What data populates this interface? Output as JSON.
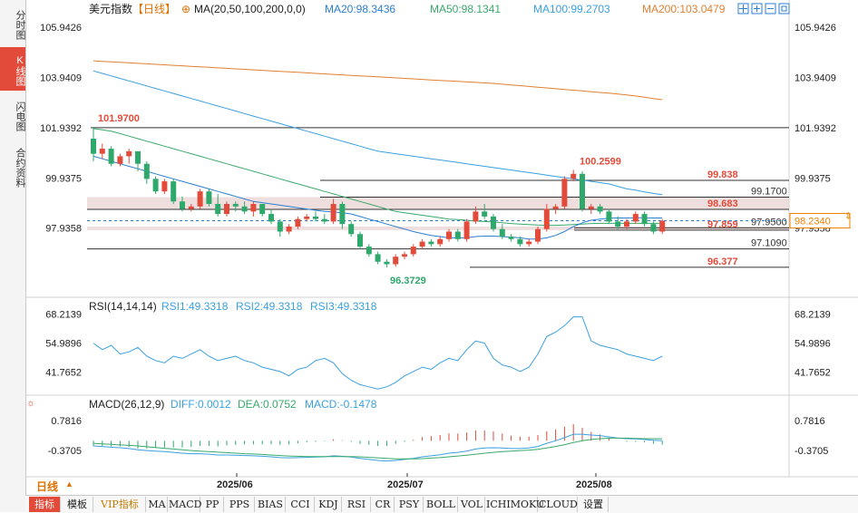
{
  "side_tabs": [
    "分时图",
    "K线图",
    "闪电图",
    "合约资料"
  ],
  "header": {
    "symbol": "美元指数",
    "period_tag": "【日线】",
    "ma_label": "MA(20,50,100,200,0,0)",
    "ma20": "MA20:98.3436",
    "ma50": "MA50:98.1341",
    "ma100": "MA100:99.2703",
    "ma200": "MA200:103.0479"
  },
  "rsi_header": {
    "label": "RSI(14,14,14)",
    "rsi1": "RSI1:49.3318",
    "rsi2": "RSI2:49.3318",
    "rsi3": "RSI3:49.3318"
  },
  "macd_header": {
    "label": "MACD(26,12,9)",
    "diff": "DIFF:0.0012",
    "dea": "DEA:0.0752",
    "macd": "MACD:-0.1478"
  },
  "period_selector": "日线",
  "indicator_tabs": [
    "指标",
    "模板",
    "VIP指标",
    "MA",
    "MACD",
    "PP",
    "PPS",
    "BIAS",
    "CCI",
    "KDJ",
    "RSI",
    "CR",
    "PSY",
    "BOLL",
    "VOL",
    "ICHIMOKU",
    "CLOUD",
    "设置"
  ],
  "colors": {
    "up": "#e24a3a",
    "down": "#2ea86b",
    "ma20": "#2b7fd0",
    "ma50": "#39a96b",
    "ma100": "#3aa0e0",
    "ma200": "#e08030",
    "current_price": "#f08000",
    "zone": "#e8d0d0"
  },
  "chart_data": [
    {
      "type": "candlestick",
      "title": "美元指数",
      "x_ticks": [
        "2025/06",
        "2025/07",
        "2025/08"
      ],
      "y_ticks": [
        "105.9426",
        "103.9409",
        "101.9392",
        "99.9375",
        "97.9358"
      ],
      "ylim": [
        95.4,
        106.3
      ],
      "current_price": "98.2340",
      "annotations": {
        "high_label": "101.9700",
        "peak_label": "100.2599",
        "low_label": "96.3729"
      },
      "levels": [
        {
          "value": 101.9392,
          "label": "101.9392",
          "color": "#333333"
        },
        {
          "value": 99.838,
          "label": "99.838",
          "color": "#e24a3a"
        },
        {
          "value": 99.17,
          "label": "99.1700",
          "color": "#333333"
        },
        {
          "value": 98.683,
          "label": "98.683",
          "color": "#e24a3a"
        },
        {
          "value": 97.95,
          "label": "97.9500",
          "color": "#333333"
        },
        {
          "value": 97.859,
          "label": "97.859",
          "color": "#e24a3a"
        },
        {
          "value": 97.109,
          "label": "97.1090",
          "color": "#333333"
        },
        {
          "value": 96.377,
          "label": "96.377",
          "color": "#e24a3a"
        }
      ],
      "zones": [
        [
          98.683,
          99.17
        ],
        [
          97.859,
          98.0
        ]
      ],
      "candles": [
        [
          101.5,
          101.97,
          100.6,
          100.9
        ],
        [
          100.9,
          101.3,
          100.7,
          101.1
        ],
        [
          101.1,
          101.2,
          100.4,
          100.5
        ],
        [
          100.5,
          100.9,
          100.4,
          100.8
        ],
        [
          100.8,
          101.1,
          100.5,
          101.0
        ],
        [
          101.0,
          101.0,
          100.2,
          100.5
        ],
        [
          100.5,
          100.6,
          99.7,
          99.9
        ],
        [
          99.9,
          100.0,
          99.3,
          99.4
        ],
        [
          99.4,
          99.9,
          99.3,
          99.8
        ],
        [
          99.8,
          99.9,
          98.9,
          99.0
        ],
        [
          99.0,
          99.2,
          98.6,
          98.7
        ],
        [
          98.7,
          98.9,
          98.6,
          98.8
        ],
        [
          98.8,
          99.5,
          98.7,
          99.4
        ],
        [
          99.4,
          99.5,
          98.8,
          98.9
        ],
        [
          98.9,
          99.3,
          98.4,
          98.5
        ],
        [
          98.5,
          99.0,
          98.4,
          98.9
        ],
        [
          98.9,
          99.0,
          98.6,
          98.8
        ],
        [
          98.8,
          99.0,
          98.5,
          98.6
        ],
        [
          98.6,
          99.0,
          98.4,
          98.9
        ],
        [
          98.9,
          98.9,
          98.4,
          98.5
        ],
        [
          98.5,
          98.7,
          98.1,
          98.2
        ],
        [
          98.2,
          98.3,
          97.6,
          97.8
        ],
        [
          97.8,
          98.1,
          97.7,
          98.0
        ],
        [
          98.0,
          98.4,
          97.9,
          98.3
        ],
        [
          98.3,
          98.5,
          98.2,
          98.4
        ],
        [
          98.4,
          98.6,
          98.2,
          98.3
        ],
        [
          98.3,
          98.5,
          98.1,
          98.2
        ],
        [
          98.2,
          99.1,
          98.1,
          98.9
        ],
        [
          98.9,
          99.0,
          97.9,
          98.1
        ],
        [
          98.1,
          98.2,
          97.6,
          97.7
        ],
        [
          97.7,
          97.8,
          97.1,
          97.2
        ],
        [
          97.2,
          97.3,
          96.8,
          96.9
        ],
        [
          96.9,
          97.0,
          96.5,
          96.6
        ],
        [
          96.6,
          96.7,
          96.37,
          96.5
        ],
        [
          96.5,
          96.9,
          96.4,
          96.8
        ],
        [
          96.8,
          97.0,
          96.7,
          96.9
        ],
        [
          96.9,
          97.3,
          96.8,
          97.2
        ],
        [
          97.2,
          97.5,
          97.1,
          97.4
        ],
        [
          97.4,
          97.5,
          97.2,
          97.3
        ],
        [
          97.3,
          97.6,
          97.2,
          97.5
        ],
        [
          97.5,
          97.9,
          97.4,
          97.8
        ],
        [
          97.8,
          97.9,
          97.4,
          97.5
        ],
        [
          97.5,
          98.3,
          97.4,
          98.2
        ],
        [
          98.2,
          98.8,
          98.1,
          98.6
        ],
        [
          98.6,
          98.9,
          98.3,
          98.4
        ],
        [
          98.4,
          98.5,
          97.8,
          97.9
        ],
        [
          97.9,
          98.1,
          97.5,
          97.6
        ],
        [
          97.6,
          97.7,
          97.4,
          97.5
        ],
        [
          97.5,
          97.6,
          97.2,
          97.3
        ],
        [
          97.3,
          97.5,
          97.2,
          97.4
        ],
        [
          97.4,
          98.0,
          97.3,
          97.9
        ],
        [
          97.9,
          98.9,
          97.8,
          98.7
        ],
        [
          98.7,
          98.9,
          98.5,
          98.8
        ],
        [
          98.8,
          100.0,
          98.7,
          99.9
        ],
        [
          99.9,
          100.2599,
          99.8,
          100.1
        ],
        [
          100.1,
          100.2,
          98.6,
          98.7
        ],
        [
          98.7,
          98.9,
          98.5,
          98.8
        ],
        [
          98.8,
          98.9,
          98.5,
          98.6
        ],
        [
          98.6,
          98.7,
          98.1,
          98.2
        ],
        [
          98.2,
          98.4,
          97.9,
          98.0
        ],
        [
          98.0,
          98.3,
          97.9,
          98.2
        ],
        [
          98.2,
          98.6,
          98.1,
          98.5
        ],
        [
          98.5,
          98.6,
          98.0,
          98.1
        ],
        [
          98.1,
          98.2,
          97.7,
          97.8
        ],
        [
          97.8,
          98.3,
          97.7,
          98.23
        ]
      ],
      "ma20": [
        100.8,
        100.7,
        100.6,
        100.5,
        100.4,
        100.3,
        100.2,
        100.1,
        100.0,
        99.9,
        99.8,
        99.7,
        99.6,
        99.5,
        99.4,
        99.3,
        99.2,
        99.1,
        99.0,
        98.95,
        98.9,
        98.85,
        98.8,
        98.75,
        98.7,
        98.65,
        98.6,
        98.58,
        98.55,
        98.5,
        98.4,
        98.3,
        98.2,
        98.1,
        98.0,
        97.9,
        97.8,
        97.72,
        97.65,
        97.6,
        97.55,
        97.55,
        97.55,
        97.6,
        97.62,
        97.62,
        97.6,
        97.58,
        97.55,
        97.5,
        97.5,
        97.55,
        97.65,
        97.8,
        98.0,
        98.15,
        98.25,
        98.3,
        98.33,
        98.34,
        98.34,
        98.35,
        98.35,
        98.34,
        98.34
      ],
      "ma50": [
        101.9,
        101.85,
        101.8,
        101.7,
        101.6,
        101.5,
        101.4,
        101.3,
        101.2,
        101.1,
        101.0,
        100.9,
        100.8,
        100.7,
        100.6,
        100.5,
        100.4,
        100.3,
        100.2,
        100.1,
        100.0,
        99.9,
        99.8,
        99.7,
        99.6,
        99.5,
        99.4,
        99.3,
        99.2,
        99.1,
        99.0,
        98.9,
        98.8,
        98.7,
        98.6,
        98.55,
        98.5,
        98.45,
        98.4,
        98.35,
        98.3,
        98.28,
        98.25,
        98.22,
        98.2,
        98.18,
        98.15,
        98.12,
        98.1,
        98.08,
        98.06,
        98.05,
        98.05,
        98.06,
        98.08,
        98.1,
        98.12,
        98.13,
        98.13,
        98.13,
        98.13,
        98.13,
        98.13,
        98.13,
        98.13
      ],
      "ma100": [
        104.2,
        104.1,
        104.0,
        103.9,
        103.8,
        103.7,
        103.6,
        103.5,
        103.4,
        103.3,
        103.2,
        103.1,
        103.0,
        102.9,
        102.8,
        102.7,
        102.6,
        102.5,
        102.4,
        102.3,
        102.2,
        102.1,
        102.0,
        101.9,
        101.8,
        101.7,
        101.6,
        101.5,
        101.4,
        101.3,
        101.2,
        101.1,
        101.0,
        100.95,
        100.9,
        100.85,
        100.8,
        100.75,
        100.7,
        100.65,
        100.6,
        100.55,
        100.5,
        100.45,
        100.4,
        100.35,
        100.3,
        100.25,
        100.2,
        100.15,
        100.1,
        100.05,
        100.0,
        99.95,
        99.9,
        99.85,
        99.8,
        99.75,
        99.7,
        99.6,
        99.5,
        99.45,
        99.38,
        99.32,
        99.27
      ],
      "ma200": [
        104.6,
        104.58,
        104.56,
        104.54,
        104.52,
        104.5,
        104.48,
        104.46,
        104.44,
        104.42,
        104.4,
        104.38,
        104.36,
        104.34,
        104.32,
        104.3,
        104.28,
        104.26,
        104.24,
        104.22,
        104.2,
        104.18,
        104.16,
        104.14,
        104.12,
        104.1,
        104.08,
        104.06,
        104.04,
        104.02,
        104.0,
        103.98,
        103.96,
        103.94,
        103.92,
        103.9,
        103.88,
        103.86,
        103.84,
        103.82,
        103.8,
        103.78,
        103.76,
        103.74,
        103.72,
        103.7,
        103.67,
        103.64,
        103.61,
        103.58,
        103.55,
        103.52,
        103.49,
        103.46,
        103.43,
        103.4,
        103.37,
        103.34,
        103.31,
        103.28,
        103.24,
        103.2,
        103.15,
        103.1,
        103.05
      ]
    },
    {
      "type": "line",
      "title": "RSI(14,14,14)",
      "y_ticks": [
        "68.2139",
        "54.9896",
        "41.7652"
      ],
      "ylim": [
        32,
        71
      ],
      "series": [
        {
          "name": "RSI1",
          "values": [
            55,
            52,
            54,
            50,
            51,
            53,
            49,
            47,
            46,
            49,
            48,
            50,
            52,
            49,
            47,
            48,
            49,
            47,
            46,
            44,
            43,
            42,
            40,
            43,
            44,
            47,
            48,
            46,
            41,
            38,
            36,
            35,
            34,
            35,
            37,
            40,
            42,
            44,
            43,
            46,
            48,
            47,
            52,
            56,
            55,
            48,
            45,
            44,
            42,
            44,
            50,
            58,
            60,
            63,
            67,
            67,
            56,
            54,
            53,
            52,
            50,
            49,
            48,
            47,
            49
          ]
        }
      ]
    },
    {
      "type": "bar",
      "title": "MACD(26,12,9)",
      "y_ticks": [
        "0.7816",
        "-0.3705"
      ],
      "ylim": [
        -0.9,
        1.2
      ],
      "series": [
        {
          "name": "DIFF",
          "values": [
            -0.2,
            -0.22,
            -0.25,
            -0.27,
            -0.3,
            -0.35,
            -0.38,
            -0.4,
            -0.42,
            -0.45,
            -0.48,
            -0.5,
            -0.5,
            -0.52,
            -0.55,
            -0.55,
            -0.56,
            -0.57,
            -0.58,
            -0.6,
            -0.62,
            -0.65,
            -0.66,
            -0.65,
            -0.64,
            -0.63,
            -0.62,
            -0.58,
            -0.6,
            -0.63,
            -0.68,
            -0.72,
            -0.76,
            -0.78,
            -0.76,
            -0.72,
            -0.68,
            -0.62,
            -0.58,
            -0.54,
            -0.48,
            -0.45,
            -0.4,
            -0.32,
            -0.28,
            -0.27,
            -0.28,
            -0.3,
            -0.3,
            -0.28,
            -0.22,
            -0.1,
            0.0,
            0.12,
            0.25,
            0.25,
            0.22,
            0.2,
            0.15,
            0.1,
            0.08,
            0.07,
            0.05,
            0.02,
            0.0
          ]
        },
        {
          "name": "DEA",
          "values": [
            -0.1,
            -0.12,
            -0.14,
            -0.16,
            -0.18,
            -0.2,
            -0.23,
            -0.26,
            -0.29,
            -0.32,
            -0.35,
            -0.38,
            -0.4,
            -0.42,
            -0.44,
            -0.46,
            -0.48,
            -0.5,
            -0.51,
            -0.53,
            -0.55,
            -0.57,
            -0.59,
            -0.6,
            -0.61,
            -0.61,
            -0.61,
            -0.61,
            -0.61,
            -0.61,
            -0.62,
            -0.64,
            -0.66,
            -0.68,
            -0.7,
            -0.7,
            -0.7,
            -0.69,
            -0.67,
            -0.65,
            -0.62,
            -0.59,
            -0.56,
            -0.52,
            -0.48,
            -0.45,
            -0.42,
            -0.4,
            -0.38,
            -0.36,
            -0.33,
            -0.28,
            -0.22,
            -0.15,
            -0.07,
            0.0,
            0.05,
            0.08,
            0.1,
            0.1,
            0.1,
            0.09,
            0.08,
            0.08,
            0.075
          ]
        },
        {
          "name": "MACD",
          "values": [
            -0.2,
            -0.2,
            -0.22,
            -0.22,
            -0.24,
            -0.3,
            -0.3,
            -0.28,
            -0.26,
            -0.26,
            -0.26,
            -0.24,
            -0.2,
            -0.2,
            -0.22,
            -0.18,
            -0.16,
            -0.14,
            -0.14,
            -0.14,
            -0.14,
            -0.16,
            -0.14,
            -0.1,
            -0.06,
            -0.04,
            -0.02,
            0.06,
            0.02,
            -0.04,
            -0.12,
            -0.16,
            -0.2,
            -0.2,
            -0.12,
            -0.04,
            0.04,
            0.14,
            0.18,
            0.22,
            0.28,
            0.28,
            0.32,
            0.4,
            0.4,
            0.36,
            0.28,
            0.2,
            0.16,
            0.16,
            0.22,
            0.36,
            0.44,
            0.54,
            0.64,
            0.5,
            0.34,
            0.24,
            0.1,
            0.0,
            -0.04,
            -0.04,
            -0.06,
            -0.12,
            -0.15
          ]
        }
      ]
    }
  ]
}
